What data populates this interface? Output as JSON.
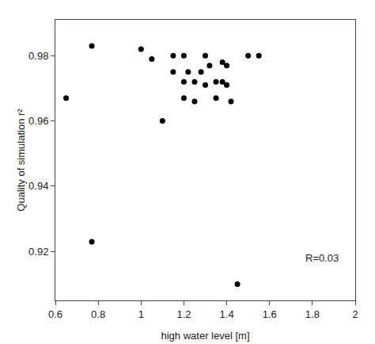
{
  "chart_data": {
    "type": "scatter",
    "x": [
      0.65,
      0.77,
      0.77,
      1.0,
      1.05,
      1.1,
      1.15,
      1.15,
      1.2,
      1.2,
      1.2,
      1.22,
      1.25,
      1.25,
      1.28,
      1.3,
      1.3,
      1.32,
      1.35,
      1.35,
      1.38,
      1.38,
      1.4,
      1.4,
      1.42,
      1.45,
      1.5,
      1.55
    ],
    "values": [
      0.967,
      0.923,
      0.983,
      0.982,
      0.979,
      0.96,
      0.975,
      0.98,
      0.972,
      0.967,
      0.98,
      0.975,
      0.966,
      0.972,
      0.975,
      0.98,
      0.971,
      0.977,
      0.967,
      0.972,
      0.978,
      0.972,
      0.971,
      0.977,
      0.966,
      0.91,
      0.98,
      0.98
    ],
    "xlim": [
      0.6,
      2.0
    ],
    "ylim": [
      0.905,
      0.991
    ],
    "xticks": [
      0.6,
      0.8,
      1,
      1.2,
      1.4,
      1.6,
      1.8,
      2
    ],
    "yticks": [
      0.92,
      0.94,
      0.96,
      0.98
    ],
    "xlabel": "high water level [m]",
    "ylabel": "Quality of simulation r²",
    "annotations": [
      {
        "text": "R=0.03",
        "x": 1.76,
        "y": 0.918
      }
    ],
    "color": "black",
    "marker": "circle",
    "grid": false
  }
}
